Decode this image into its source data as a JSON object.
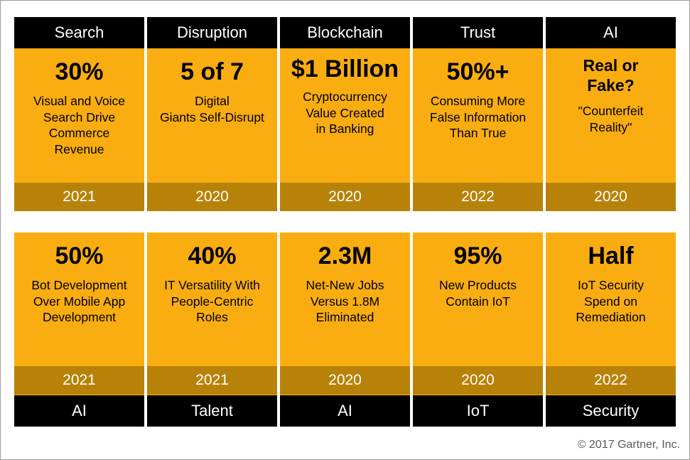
{
  "row1": [
    {
      "category": "Search",
      "value": "30%",
      "desc": "Visual and Voice\nSearch Drive\nCommerce\nRevenue",
      "year": "2021"
    },
    {
      "category": "Disruption",
      "value": "5 of 7",
      "desc": "Digital\nGiants Self-Disrupt",
      "year": "2020"
    },
    {
      "category": "Blockchain",
      "value": "$1 Billion",
      "desc": "Cryptocurrency\nValue Created\nin Banking",
      "year": "2020"
    },
    {
      "category": "Trust",
      "value": "50%+",
      "desc": "Consuming More\nFalse Information\nThan True",
      "year": "2022"
    },
    {
      "category": "AI",
      "value": "Real or\nFake?",
      "desc": "\"Counterfeit\nReality\"",
      "year": "2020"
    }
  ],
  "row2": [
    {
      "category": "AI",
      "value": "50%",
      "desc": "Bot Development\nOver Mobile App\nDevelopment",
      "year": "2021"
    },
    {
      "category": "Talent",
      "value": "40%",
      "desc": "IT Versatility With\nPeople-Centric\nRoles",
      "year": "2021"
    },
    {
      "category": "AI",
      "value": "2.3M",
      "desc": "Net-New Jobs\nVersus 1.8M\nEliminated",
      "year": "2020"
    },
    {
      "category": "IoT",
      "value": "95%",
      "desc": "New Products\nContain IoT",
      "year": "2020"
    },
    {
      "category": "Security",
      "value": "Half",
      "desc": "IoT Security\nSpend on\nRemediation",
      "year": "2022"
    }
  ],
  "copyright": "© 2017 Gartner, Inc.",
  "colors": {
    "card": "#f9ad10",
    "year_band": "#b88208",
    "header": "#000000"
  }
}
